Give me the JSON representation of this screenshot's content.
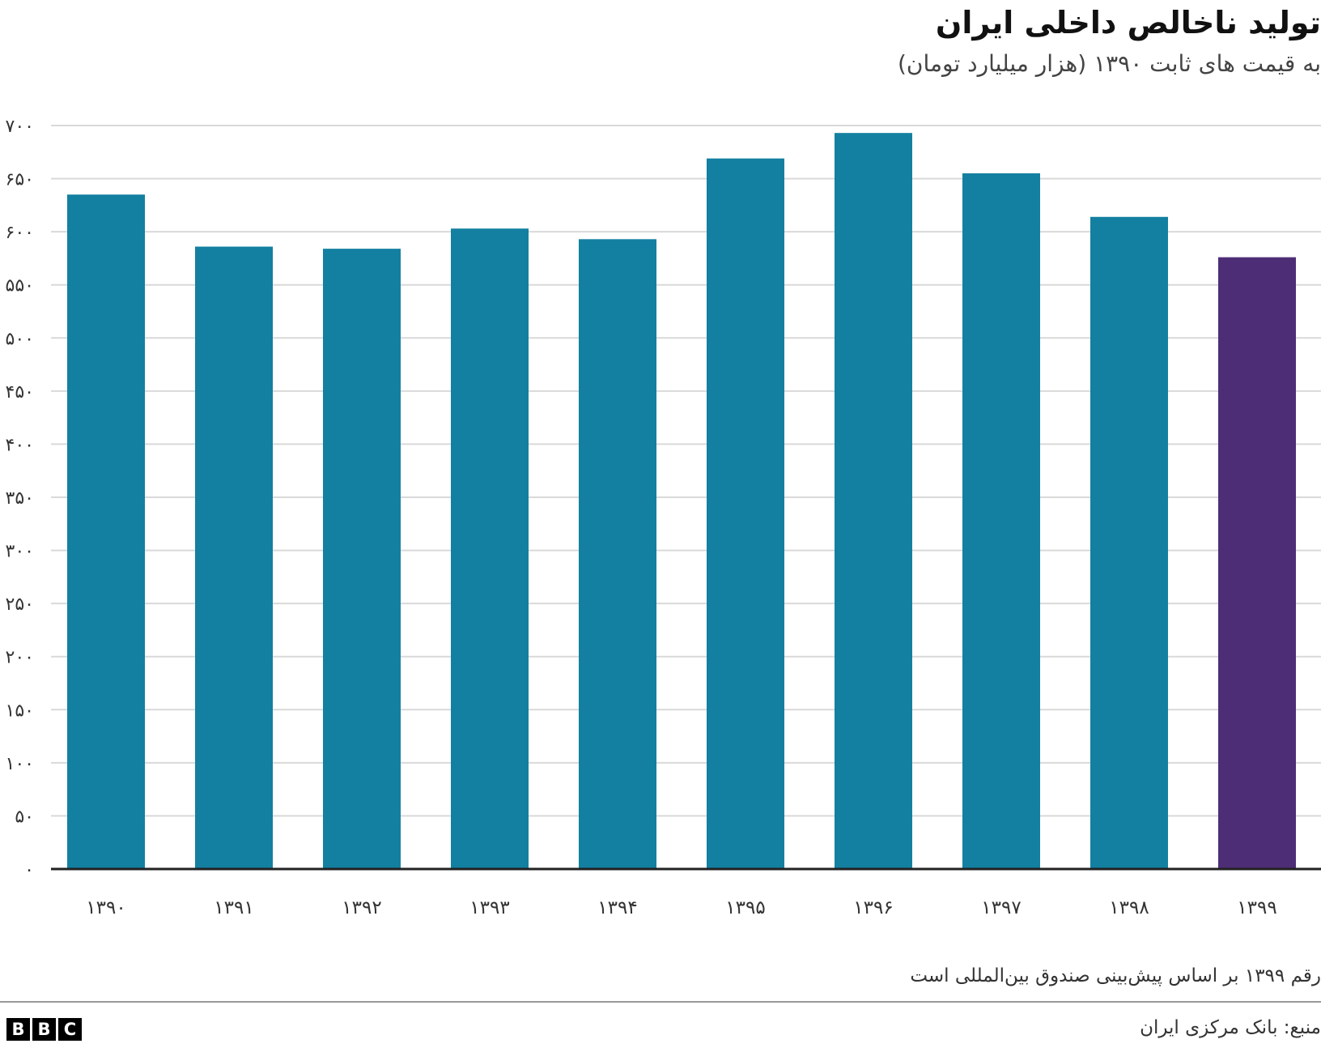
{
  "chart_data": {
    "type": "bar",
    "title": "تولید ناخالص داخلی ایران",
    "subtitle": "به قیمت های ثابت ۱۳۹۰ (هزار میلیارد تومان)",
    "categories": [
      "۱۳۹۰",
      "۱۳۹۱",
      "۱۳۹۲",
      "۱۳۹۳",
      "۱۳۹۴",
      "۱۳۹۵",
      "۱۳۹۶",
      "۱۳۹۷",
      "۱۳۹۸",
      "۱۳۹۹"
    ],
    "values": [
      635,
      586,
      584,
      603,
      593,
      669,
      693,
      655,
      614,
      576
    ],
    "colors": [
      "#1380A1",
      "#1380A1",
      "#1380A1",
      "#1380A1",
      "#1380A1",
      "#1380A1",
      "#1380A1",
      "#1380A1",
      "#1380A1",
      "#4D2E76"
    ],
    "ylim": [
      0,
      700
    ],
    "yticks": [
      0,
      50,
      100,
      150,
      200,
      250,
      300,
      350,
      400,
      450,
      500,
      550,
      600,
      650,
      700
    ],
    "ytick_labels": [
      "۰",
      "۵۰",
      "۱۰۰",
      "۱۵۰",
      "۲۰۰",
      "۲۵۰",
      "۳۰۰",
      "۳۵۰",
      "۴۰۰",
      "۴۵۰",
      "۵۰۰",
      "۵۵۰",
      "۶۰۰",
      "۶۵۰",
      "۷۰۰"
    ],
    "xlabel": "",
    "ylabel": "",
    "grid": true,
    "legend": "none"
  },
  "note": "رقم ۱۳۹۹ بر اساس پیش‌بینی صندوق بین‌المللی است",
  "source": "منبع: بانک مرکزی ایران",
  "logo": {
    "letters": [
      "B",
      "B",
      "C"
    ]
  }
}
